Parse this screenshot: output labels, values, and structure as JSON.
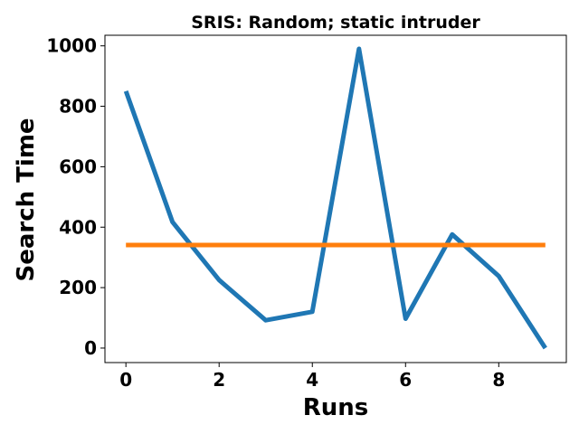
{
  "chart_data": {
    "type": "line",
    "title": "SRIS: Random; static intruder",
    "xlabel": "Runs",
    "ylabel": "Search Time",
    "x": [
      0,
      1,
      2,
      3,
      4,
      5,
      6,
      7,
      8,
      9
    ],
    "xlim": [
      -0.45,
      9.45
    ],
    "ylim": [
      -48,
      1035
    ],
    "xticks": [
      0,
      2,
      4,
      6,
      8
    ],
    "yticks": [
      0,
      200,
      400,
      600,
      800,
      1000
    ],
    "xtick_labels": [
      "0",
      "2",
      "4",
      "6",
      "8"
    ],
    "ytick_labels": [
      "0",
      "200",
      "400",
      "600",
      "800",
      "1000"
    ],
    "grid": false,
    "legend": "none",
    "series": [
      {
        "color": "#1f77b4",
        "values": [
          850,
          417,
          225,
          92,
          120,
          990,
          97,
          376,
          238,
          0
        ]
      },
      {
        "color": "#ff7f0e",
        "values": [
          341,
          341,
          341,
          341,
          341,
          341,
          341,
          341,
          341,
          341
        ]
      }
    ]
  }
}
